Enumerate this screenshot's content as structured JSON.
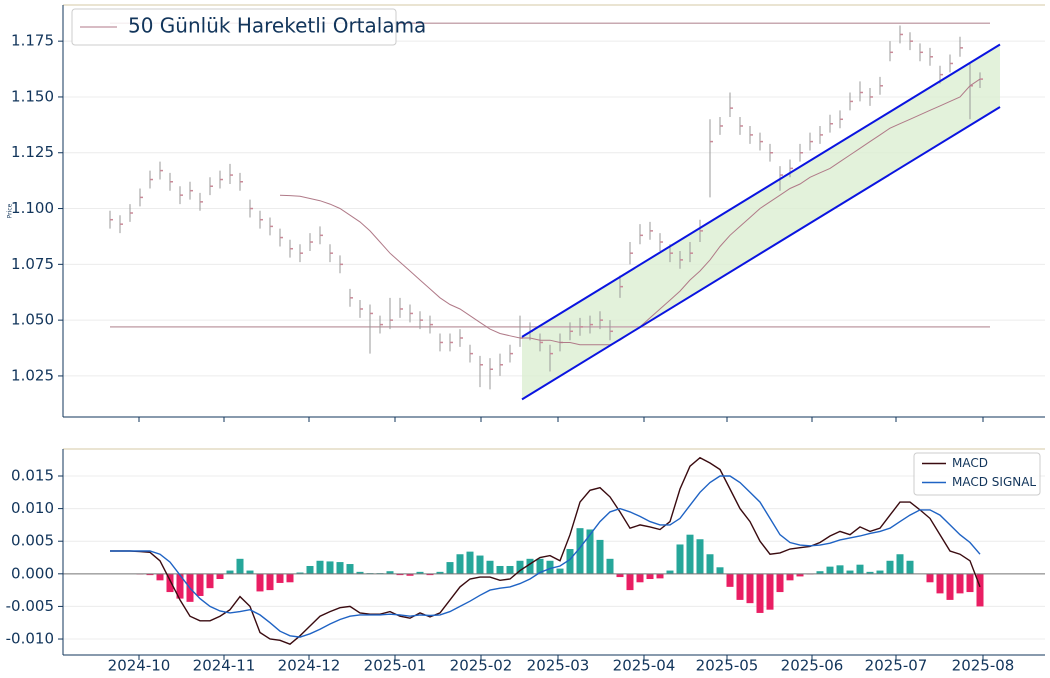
{
  "chart_data": [
    {
      "type": "ohlc",
      "ylabel": "Price",
      "categories": [
        null,
        null,
        null,
        null,
        null,
        null,
        null,
        null,
        null,
        null,
        null,
        null,
        null,
        null,
        null,
        null,
        null,
        null,
        null,
        null,
        null,
        null,
        null,
        null,
        null,
        null,
        null,
        null,
        null,
        null,
        null,
        null,
        null,
        null,
        null,
        null,
        null,
        null,
        null,
        null,
        null,
        null,
        null,
        null,
        null,
        null,
        null,
        null,
        null,
        null,
        null,
        null,
        null,
        null,
        null,
        null,
        null,
        null,
        null,
        null,
        null,
        null,
        null,
        null,
        null,
        null,
        null,
        null,
        null,
        null,
        null,
        null,
        null,
        null,
        null,
        null,
        null,
        null,
        null,
        null,
        null,
        null,
        null,
        null,
        null,
        null,
        null,
        null
      ],
      "xlim": [
        -4.7,
        93.5
      ],
      "ylim": [
        1.0066,
        1.1912
      ],
      "yticks": [
        1.025,
        {
          "value": 1.05,
          "label": "1.050"
        },
        1.075,
        {
          "value": 1.1,
          "label": "1.100"
        },
        1.125,
        {
          "value": 1.15,
          "label": "1.150"
        },
        1.175
      ],
      "grid": true,
      "bar_color": "#9a9a9a",
      "close_color": "#c98a98",
      "high": [
        1.099,
        1.097,
        1.102,
        1.109,
        1.117,
        1.121,
        1.116,
        1.11,
        1.112,
        1.107,
        1.114,
        1.117,
        1.12,
        1.116,
        1.104,
        1.099,
        1.096,
        1.091,
        1.086,
        1.084,
        1.089,
        1.092,
        1.084,
        1.079,
        1.064,
        1.059,
        1.057,
        1.052,
        1.06,
        1.06,
        1.057,
        1.054,
        1.052,
        1.044,
        1.044,
        1.046,
        1.039,
        1.034,
        1.033,
        1.035,
        1.039,
        1.052,
        1.049,
        1.044,
        1.039,
        1.044,
        1.049,
        1.051,
        1.052,
        1.054,
        1.05,
        1.07,
        1.085,
        1.093,
        1.094,
        1.089,
        1.084,
        1.081,
        1.085,
        1.095,
        1.14,
        1.141,
        1.152,
        1.141,
        1.137,
        1.134,
        1.129,
        1.119,
        1.122,
        1.129,
        1.134,
        1.137,
        1.142,
        1.144,
        1.152,
        1.157,
        1.154,
        1.159,
        1.175,
        1.182,
        1.179,
        1.174,
        1.172,
        1.164,
        1.169,
        1.177,
        1.165,
        1.161
      ],
      "low": [
        1.091,
        1.089,
        1.094,
        1.101,
        1.109,
        1.113,
        1.108,
        1.102,
        1.104,
        1.099,
        1.106,
        1.109,
        1.111,
        1.108,
        1.096,
        1.091,
        1.088,
        1.083,
        1.078,
        1.076,
        1.081,
        1.084,
        1.076,
        1.071,
        1.056,
        1.051,
        1.035,
        1.044,
        1.046,
        1.051,
        1.049,
        1.046,
        1.044,
        1.036,
        1.036,
        1.038,
        1.031,
        1.02,
        1.019,
        1.025,
        1.031,
        1.038,
        1.041,
        1.036,
        1.027,
        1.036,
        1.041,
        1.043,
        1.044,
        1.046,
        1.041,
        1.06,
        1.075,
        1.084,
        1.086,
        1.081,
        1.076,
        1.073,
        1.076,
        1.085,
        1.105,
        1.133,
        1.141,
        1.133,
        1.129,
        1.126,
        1.121,
        1.108,
        1.114,
        1.121,
        1.126,
        1.129,
        1.134,
        1.136,
        1.144,
        1.148,
        1.146,
        1.151,
        1.166,
        1.174,
        1.171,
        1.166,
        1.164,
        1.156,
        1.161,
        1.168,
        1.14,
        1.154
      ],
      "close": [
        1.095,
        1.093,
        1.098,
        1.105,
        1.113,
        1.117,
        1.112,
        1.106,
        1.108,
        1.103,
        1.11,
        1.113,
        1.115,
        1.112,
        1.1,
        1.095,
        1.092,
        1.087,
        1.082,
        1.08,
        1.085,
        1.088,
        1.08,
        1.075,
        1.06,
        1.055,
        1.053,
        1.048,
        1.05,
        1.055,
        1.053,
        1.05,
        1.048,
        1.04,
        1.04,
        1.042,
        1.035,
        1.03,
        1.028,
        1.03,
        1.035,
        1.042,
        1.045,
        1.04,
        1.035,
        1.04,
        1.045,
        1.047,
        1.048,
        1.05,
        1.045,
        1.065,
        1.08,
        1.088,
        1.09,
        1.085,
        1.08,
        1.077,
        1.08,
        1.09,
        1.13,
        1.137,
        1.145,
        1.137,
        1.133,
        1.13,
        1.125,
        1.115,
        1.118,
        1.125,
        1.13,
        1.133,
        1.138,
        1.14,
        1.148,
        1.152,
        1.15,
        1.155,
        1.17,
        1.178,
        1.175,
        1.17,
        1.168,
        1.16,
        1.165,
        1.172,
        1.155,
        1.158
      ],
      "series": [
        {
          "name": "50 Günlük Hareketli Ortalama",
          "color": "#b07a88",
          "values": [
            null,
            null,
            null,
            null,
            null,
            null,
            null,
            null,
            null,
            null,
            null,
            null,
            null,
            null,
            null,
            null,
            null,
            1.106,
            1.1058,
            1.1055,
            1.1045,
            1.1035,
            1.102,
            1.1,
            1.097,
            1.094,
            1.09,
            1.085,
            1.08,
            1.076,
            1.072,
            1.068,
            1.064,
            1.06,
            1.057,
            1.055,
            1.052,
            1.049,
            1.046,
            1.044,
            1.043,
            1.042,
            1.042,
            1.041,
            1.041,
            1.04,
            1.04,
            1.039,
            1.039,
            1.039,
            1.039,
            1.041,
            1.044,
            1.047,
            1.051,
            1.055,
            1.059,
            1.063,
            1.068,
            1.072,
            1.077,
            1.083,
            1.088,
            1.092,
            1.096,
            1.1,
            1.103,
            1.106,
            1.109,
            1.111,
            1.114,
            1.116,
            1.118,
            1.121,
            1.124,
            1.127,
            1.13,
            1.133,
            1.136,
            1.138,
            1.14,
            1.142,
            1.144,
            1.146,
            1.148,
            1.15,
            1.155,
            1.158
          ]
        }
      ],
      "legend": "upper left",
      "levels": {
        "values": [
          1.183,
          1.047
        ],
        "start": 0,
        "end": 88,
        "color": "#c8a9b1"
      },
      "channel": {
        "start": 41.2,
        "end": 89,
        "upper": [
          1.0425,
          1.1735
        ],
        "lower": [
          1.0145,
          1.1455
        ],
        "color": "#0a14e0",
        "fill": "#dcefd2"
      }
    },
    {
      "type": "macd",
      "categories": [
        null,
        null,
        null,
        null,
        null,
        null,
        null,
        null,
        null,
        null,
        null,
        null,
        null,
        null,
        null,
        null,
        null,
        null,
        null,
        null,
        null,
        null,
        null,
        null,
        null,
        null,
        null,
        null,
        null,
        null,
        null,
        null,
        null,
        null,
        null,
        null,
        null,
        null,
        null,
        null,
        null,
        null,
        null,
        null,
        null,
        null,
        null,
        null,
        null,
        null,
        null,
        null,
        null,
        null,
        null,
        null,
        null,
        null,
        null,
        null,
        null,
        null,
        null,
        null,
        null,
        null,
        null,
        null,
        null,
        null,
        null,
        null,
        null,
        null,
        null,
        null,
        null,
        null,
        null,
        null,
        null,
        null,
        null,
        null,
        null,
        null,
        null,
        null
      ],
      "xlim": [
        -4.7,
        93.5
      ],
      "xticks": [
        {
          "value": 2.9,
          "label": "2024-10"
        },
        {
          "value": 11.4,
          "label": "2024-11"
        },
        {
          "value": 19.9,
          "label": "2024-12"
        },
        {
          "value": 28.5,
          "label": "2025-01"
        },
        {
          "value": 37.1,
          "label": "2025-02"
        },
        {
          "value": 44.8,
          "label": "2025-03"
        },
        {
          "value": 53.4,
          "label": "2025-04"
        },
        {
          "value": 61.7,
          "label": "2025-05"
        },
        {
          "value": 70.2,
          "label": "2025-06"
        },
        {
          "value": 78.6,
          "label": "2025-07"
        },
        {
          "value": 87.3,
          "label": "2025-08"
        }
      ],
      "ylim": [
        -0.01245,
        0.01914
      ],
      "yticks": [
        {
          "value": -0.01,
          "label": "-0.010"
        },
        -0.005,
        {
          "value": 0,
          "label": "0.000"
        },
        0.005,
        {
          "value": 0.01,
          "label": "0.010"
        },
        0.015
      ],
      "grid": true,
      "legend": "upper right",
      "series": [
        {
          "name": "MACD",
          "color": "#3a0b10",
          "values": [
            0.0035,
            0.0035,
            0.0035,
            0.0034,
            0.0033,
            0.002,
            -0.001,
            -0.004,
            -0.0065,
            -0.0072,
            -0.0072,
            -0.0065,
            -0.0055,
            -0.0035,
            -0.005,
            -0.009,
            -0.01,
            -0.0102,
            -0.0108,
            -0.0095,
            -0.008,
            -0.0065,
            -0.0058,
            -0.0052,
            -0.005,
            -0.006,
            -0.0062,
            -0.0062,
            -0.0058,
            -0.0065,
            -0.0068,
            -0.006,
            -0.0066,
            -0.006,
            -0.004,
            -0.002,
            -0.0008,
            -0.0005,
            -0.0005,
            -0.001,
            -0.0008,
            0.0005,
            0.0015,
            0.0025,
            0.0028,
            0.002,
            0.006,
            0.011,
            0.0128,
            0.0132,
            0.0118,
            0.0095,
            0.007,
            0.0075,
            0.0072,
            0.0068,
            0.008,
            0.013,
            0.0165,
            0.0178,
            0.017,
            0.016,
            0.013,
            0.01,
            0.008,
            0.005,
            0.003,
            0.0032,
            0.0038,
            0.004,
            0.0042,
            0.0048,
            0.0058,
            0.0065,
            0.006,
            0.0072,
            0.0065,
            0.007,
            0.009,
            0.011,
            0.011,
            0.0098,
            0.0085,
            0.006,
            0.0035,
            0.003,
            0.002,
            -0.002
          ]
        },
        {
          "name": "MACD SIGNAL",
          "color": "#1f63c4",
          "values": [
            0.0035,
            0.0035,
            0.0035,
            0.0035,
            0.0035,
            0.003,
            0.0018,
            -0.0002,
            -0.0022,
            -0.0038,
            -0.005,
            -0.0057,
            -0.006,
            -0.0058,
            -0.0055,
            -0.0063,
            -0.0075,
            -0.0088,
            -0.0095,
            -0.0097,
            -0.0092,
            -0.0085,
            -0.0077,
            -0.007,
            -0.0065,
            -0.0063,
            -0.0063,
            -0.0063,
            -0.0062,
            -0.0063,
            -0.0065,
            -0.0063,
            -0.0064,
            -0.0063,
            -0.0058,
            -0.005,
            -0.0042,
            -0.0033,
            -0.0025,
            -0.0022,
            -0.002,
            -0.0015,
            -0.0008,
            0.0002,
            0.0008,
            0.0012,
            0.0022,
            0.004,
            0.006,
            0.008,
            0.0095,
            0.01,
            0.0095,
            0.0088,
            0.008,
            0.0075,
            0.0075,
            0.0085,
            0.0105,
            0.0125,
            0.014,
            0.015,
            0.015,
            0.014,
            0.0125,
            0.011,
            0.0085,
            0.006,
            0.0048,
            0.0044,
            0.0043,
            0.0044,
            0.0047,
            0.0052,
            0.0055,
            0.0058,
            0.0062,
            0.0065,
            0.007,
            0.008,
            0.009,
            0.0098,
            0.0098,
            0.009,
            0.0075,
            0.006,
            0.0048,
            0.003
          ]
        }
      ],
      "histogram": {
        "up_color": "#26a69a",
        "down_color": "#e91e63",
        "values": [
          0,
          0,
          0,
          -0.0001,
          -0.0002,
          -0.001,
          -0.0028,
          -0.0038,
          -0.0043,
          -0.0034,
          -0.0022,
          -0.0008,
          0.0005,
          0.0023,
          0.0005,
          -0.0027,
          -0.0025,
          -0.0014,
          -0.0013,
          0.0002,
          0.0012,
          0.002,
          0.0019,
          0.0018,
          0.0015,
          0.0003,
          0.0001,
          0.0001,
          0.0004,
          -0.0002,
          -0.0003,
          0.0003,
          -0.0002,
          0.0003,
          0.0018,
          0.003,
          0.0034,
          0.0028,
          0.002,
          0.0012,
          0.0012,
          0.002,
          0.0023,
          0.0023,
          0.002,
          0.0008,
          0.0038,
          0.007,
          0.0068,
          0.0052,
          0.0023,
          -0.0005,
          -0.0025,
          -0.0013,
          -0.0008,
          -0.0007,
          0.0005,
          0.0045,
          0.006,
          0.0053,
          0.003,
          0.001,
          -0.002,
          -0.004,
          -0.0045,
          -0.006,
          -0.0055,
          -0.0028,
          -0.001,
          -0.0004,
          -0.0001,
          0.0004,
          0.0011,
          0.0013,
          0.0005,
          0.0014,
          0.0003,
          0.0005,
          0.002,
          0.003,
          0.002,
          0,
          -0.0013,
          -0.003,
          -0.004,
          -0.003,
          -0.0028,
          -0.005
        ]
      }
    }
  ]
}
